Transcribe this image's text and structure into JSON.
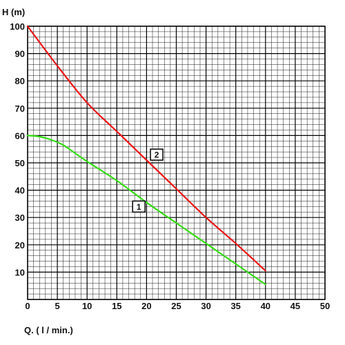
{
  "chart_data": {
    "type": "line",
    "xlabel": "Q. ( l / min.)",
    "ylabel": "H (m)",
    "xlim": [
      0,
      50
    ],
    "ylim": [
      0,
      100
    ],
    "x_ticks": [
      "0",
      "5",
      "10",
      "15",
      "20",
      "25",
      "30",
      "35",
      "40",
      "45",
      "50"
    ],
    "y_ticks": [
      "10",
      "20",
      "30",
      "40",
      "50",
      "60",
      "70",
      "80",
      "90",
      "100"
    ],
    "grid": true,
    "series": [
      {
        "name": "1",
        "color": "#33dd11",
        "x": [
          0,
          2,
          4,
          6,
          8,
          10,
          15,
          20,
          25,
          30,
          35,
          40
        ],
        "y": [
          60,
          59.6,
          58.4,
          56.5,
          53.5,
          50.5,
          43.5,
          35.5,
          28,
          20.5,
          13,
          5.5
        ]
      },
      {
        "name": "2",
        "color": "#ee1111",
        "x": [
          0,
          5,
          10,
          15,
          20,
          25,
          30,
          35,
          40
        ],
        "y": [
          100,
          85.5,
          72,
          61.5,
          51,
          40.5,
          30,
          20.5,
          10.5
        ]
      }
    ],
    "annotations": [
      {
        "text": "1",
        "x": 18.7,
        "y": 34
      },
      {
        "text": "2",
        "x": 21.7,
        "y": 53
      }
    ]
  }
}
